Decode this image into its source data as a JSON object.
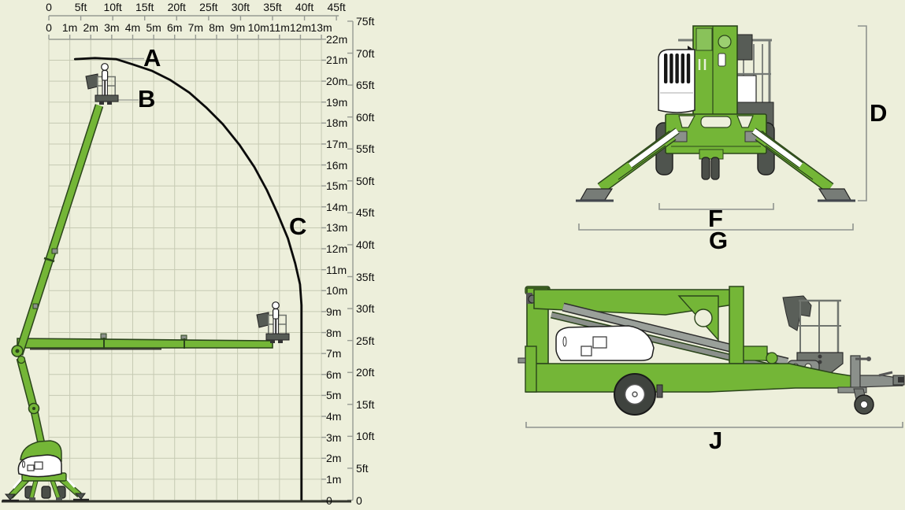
{
  "colors": {
    "background": "#edefdb",
    "grid": "#c6cab3",
    "ruler": "#979b93",
    "ink": "#0d0d0d",
    "curve": "#0b0b0b",
    "machine_green": "#74b637",
    "machine_green_dark": "#2b451b",
    "machine_gray": "#8b908b",
    "machine_dark_gray": "#565b55",
    "white": "#ffffff"
  },
  "chart_data": {
    "type": "line",
    "grid": true,
    "x_range_m": [
      0,
      13
    ],
    "y_range_m": [
      0,
      22
    ],
    "axes": {
      "top_feet": {
        "unit": "ft",
        "values": [
          0,
          5,
          10,
          15,
          20,
          25,
          30,
          35,
          40,
          45
        ],
        "labels": [
          "0",
          "5ft",
          "10ft",
          "15ft",
          "20ft",
          "25ft",
          "30ft",
          "35ft",
          "40ft",
          "45ft"
        ]
      },
      "top_meters": {
        "unit": "m",
        "values": [
          0,
          1,
          2,
          3,
          4,
          5,
          6,
          7,
          8,
          9,
          10,
          11,
          12,
          13
        ],
        "labels": [
          "0",
          "1m",
          "2m",
          "3m",
          "4m",
          "5m",
          "6m",
          "7m",
          "8m",
          "9m",
          "10m",
          "11m",
          "12m",
          "13m"
        ]
      },
      "right_meters": {
        "unit": "m",
        "values": [
          22,
          21,
          20,
          19,
          18,
          17,
          16,
          15,
          14,
          13,
          12,
          11,
          10,
          9,
          8,
          7,
          6,
          5,
          4,
          3,
          2,
          1,
          0
        ],
        "labels": [
          "22m",
          "21m",
          "20m",
          "19m",
          "18m",
          "17m",
          "16m",
          "15m",
          "14m",
          "13m",
          "12m",
          "11m",
          "10m",
          "9m",
          "8m",
          "7m",
          "6m",
          "5m",
          "4m",
          "3m",
          "2m",
          "1m",
          "0"
        ]
      },
      "right_feet": {
        "unit": "ft",
        "values": [
          75,
          70,
          65,
          60,
          55,
          50,
          45,
          40,
          35,
          30,
          25,
          20,
          15,
          10,
          5,
          0
        ],
        "labels": [
          "75ft",
          "70ft",
          "65ft",
          "60ft",
          "55ft",
          "50ft",
          "45ft",
          "40ft",
          "35ft",
          "30ft",
          "25ft",
          "20ft",
          "15ft",
          "10ft",
          "5ft",
          "0"
        ]
      }
    },
    "series": [
      {
        "name": "working-envelope",
        "envelope_m": [
          [
            1.25,
            21.05
          ],
          [
            2.2,
            21.1
          ],
          [
            3.2,
            21.05
          ],
          [
            4.0,
            20.8
          ],
          [
            4.9,
            20.5
          ],
          [
            5.8,
            20.05
          ],
          [
            6.7,
            19.45
          ],
          [
            7.5,
            18.75
          ],
          [
            8.3,
            17.95
          ],
          [
            9.1,
            16.95
          ],
          [
            9.8,
            15.9
          ],
          [
            10.4,
            14.8
          ],
          [
            10.9,
            13.7
          ],
          [
            11.4,
            12.5
          ],
          [
            11.75,
            11.3
          ],
          [
            11.98,
            10.3
          ],
          [
            12.05,
            9.3
          ],
          [
            12.05,
            0
          ]
        ]
      }
    ]
  },
  "markers": {
    "A": "A",
    "B": "B",
    "C": "C",
    "D": "D",
    "F": "F",
    "G": "G",
    "J": "J"
  }
}
